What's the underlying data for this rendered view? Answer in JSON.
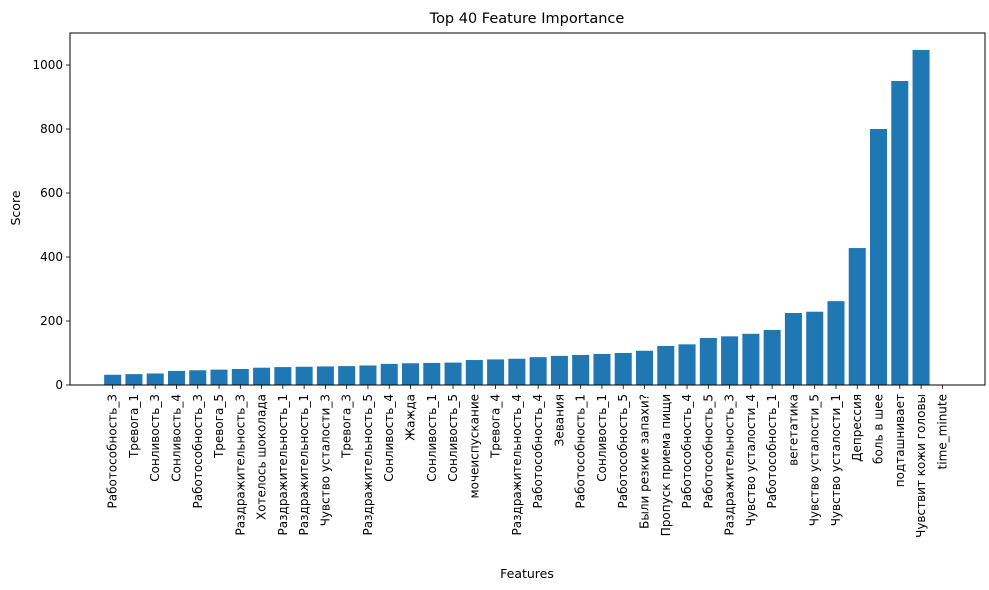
{
  "chart_data": {
    "type": "bar",
    "title": "Top 40 Feature Importance",
    "xlabel": "Features",
    "ylabel": "Score",
    "ylim": [
      0,
      1100
    ],
    "yticks": [
      0,
      200,
      400,
      600,
      800,
      1000
    ],
    "bar_color": "#1f77b4",
    "grid": false,
    "categories": [
      "Работособность_3",
      "Тревога_1",
      "Сонливость_3",
      "Сонливость_4",
      "Работособность_3",
      "Тревога_5",
      "Раздражительность_3",
      "Хотелось шоколада",
      "Раздражительность_1",
      "Раздражительность_1",
      "Чувство усталости_3",
      "Тревога_3",
      "Раздражительность_5",
      "Сонливость_4",
      "Жажда",
      "Сонливость_1",
      "Сонливость_5",
      "мочеиспускание",
      "Тревога_4",
      "Раздражительность_4",
      "Работособность_4",
      "Зевания",
      "Работособность_1",
      "Сонливость_1",
      "Работособность_5",
      "Были резкие запахи?",
      "Пропуск приема пищи",
      "Работособность_4",
      "Работособность_5",
      "Раздражительность_3",
      "Чувство усталости_4",
      "Работособность_1",
      "вегетатика",
      "Чувство усталости_5",
      "Чувство усталости_1",
      "Депрессия",
      "боль в шее",
      "подташнивает",
      "Чувствит кожи головы",
      "time_minute"
    ],
    "values": [
      32,
      34,
      36,
      44,
      46,
      48,
      50,
      54,
      56,
      57,
      58,
      59,
      61,
      66,
      68,
      69,
      70,
      78,
      80,
      82,
      87,
      91,
      94,
      97,
      100,
      107,
      122,
      127,
      147,
      152,
      160,
      172,
      225,
      229,
      262,
      428,
      800,
      950,
      1047,
      0
    ]
  }
}
